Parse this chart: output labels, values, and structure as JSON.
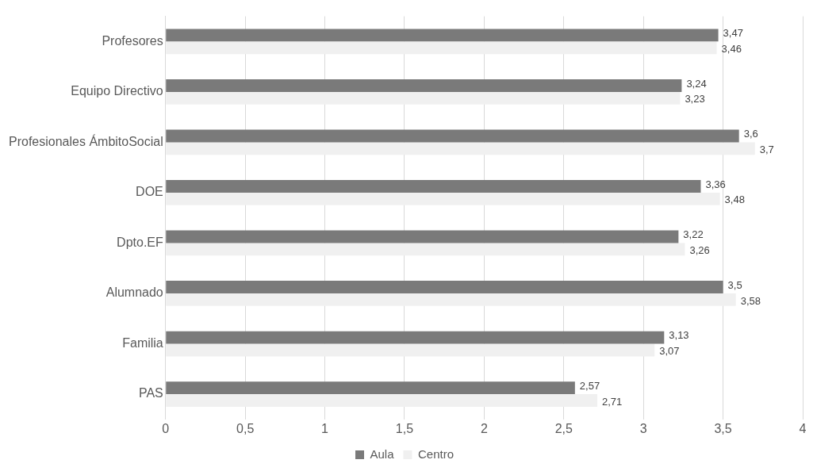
{
  "chart_data": {
    "type": "bar",
    "orientation": "horizontal",
    "categories": [
      "Profesores",
      "Equipo Directivo",
      "Profesionales ÁmbitoSocial",
      "DOE",
      "Dpto.EF",
      "Alumnado",
      "Familia",
      "PAS"
    ],
    "series": [
      {
        "name": "Aula",
        "color": "#7a7a7a",
        "values": [
          3.47,
          3.24,
          3.6,
          3.36,
          3.22,
          3.5,
          3.13,
          2.57
        ],
        "value_labels": [
          "3,47",
          "3,24",
          "3,6",
          "3,36",
          "3,22",
          "3,5",
          "3,13",
          "2,57"
        ]
      },
      {
        "name": "Centro",
        "color": "#f0f0f0",
        "values": [
          3.46,
          3.23,
          3.7,
          3.48,
          3.26,
          3.58,
          3.07,
          2.71
        ],
        "value_labels": [
          "3,46",
          "3,23",
          "3,7",
          "3,48",
          "3,26",
          "3,58",
          "3,07",
          "2,71"
        ]
      }
    ],
    "xlim": [
      0,
      4
    ],
    "xticks": [
      0,
      {
        "value": 0.5,
        "label": "0,5"
      },
      1,
      {
        "value": 1.5,
        "label": "1,5"
      },
      2,
      {
        "value": 2.5,
        "label": "2,5"
      },
      3,
      {
        "value": 3.5,
        "label": "3,5"
      },
      4
    ],
    "grid": "x",
    "legend": "bottom"
  }
}
